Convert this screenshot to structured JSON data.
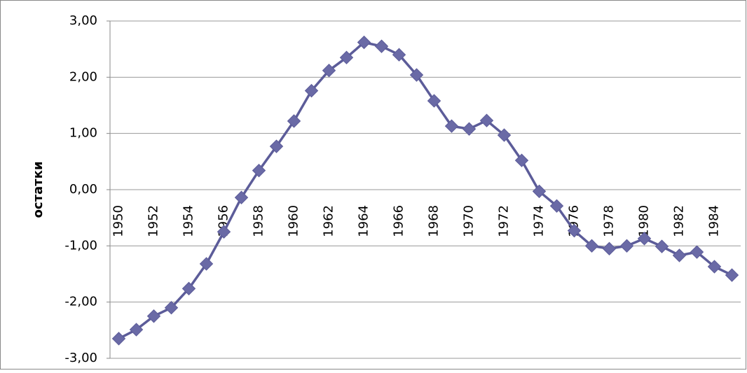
{
  "chart_data": {
    "type": "line",
    "y_label": "остатки",
    "categories": [
      "1950",
      null,
      "1952",
      null,
      "1954",
      null,
      "1956",
      null,
      "1958",
      null,
      "1960",
      null,
      "1962",
      null,
      "1964",
      null,
      "1966",
      null,
      "1968",
      null,
      "1970",
      null,
      "1972",
      null,
      "1974",
      null,
      "1976",
      null,
      "1978",
      null,
      "1980",
      null,
      "1982",
      null,
      "1984",
      null
    ],
    "series": [
      {
        "name": "остатки",
        "color": "#5c5c99",
        "values": [
          -2.65,
          -2.49,
          -2.25,
          -2.1,
          -1.76,
          -1.32,
          -0.75,
          -0.14,
          0.34,
          0.77,
          1.22,
          1.76,
          2.12,
          2.35,
          2.62,
          2.55,
          2.4,
          2.04,
          1.58,
          1.13,
          1.08,
          1.23,
          0.97,
          0.52,
          -0.03,
          -0.29,
          -0.73,
          -1.0,
          -1.05,
          -1.0,
          -0.87,
          -1.01,
          -1.17,
          -1.11,
          -1.37,
          -1.52
        ]
      }
    ],
    "ylim": [
      -3,
      3
    ],
    "yticks": [
      {
        "value": -3,
        "label": "-3,00"
      },
      {
        "value": -2,
        "label": "-2,00"
      },
      {
        "value": -1,
        "label": "-1,00"
      },
      {
        "value": 0,
        "label": "0,00"
      },
      {
        "value": 1,
        "label": "1,00"
      },
      {
        "value": 2,
        "label": "2,00"
      },
      {
        "value": 3,
        "label": "3,00"
      }
    ],
    "grid": true
  }
}
